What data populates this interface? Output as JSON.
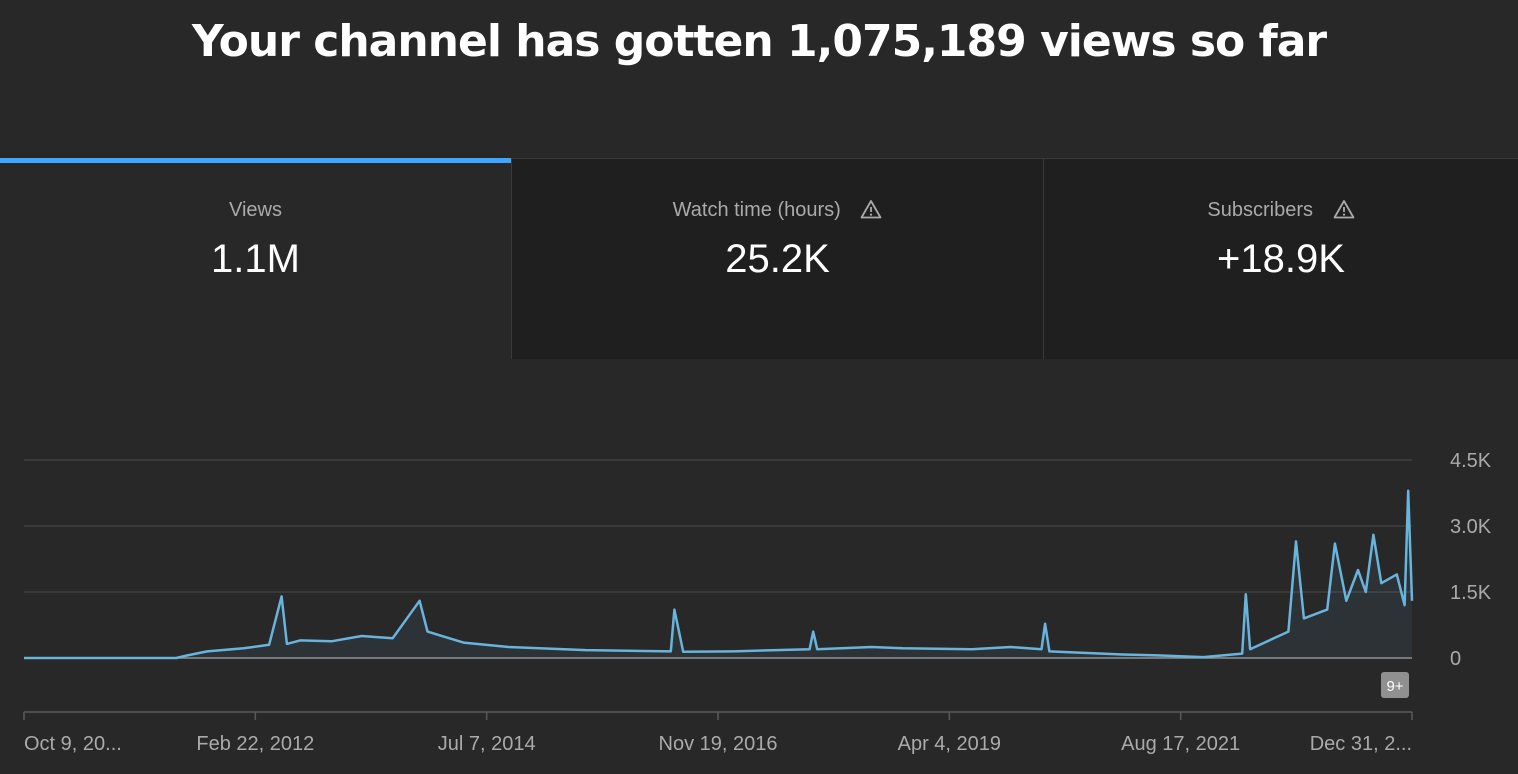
{
  "headline": "Your channel has gotten 1,075,189 views so far",
  "tabs": [
    {
      "label": "Views",
      "value": "1.1M",
      "warning": false,
      "active": true
    },
    {
      "label": "Watch time (hours)",
      "value": "25.2K",
      "warning": true,
      "active": false
    },
    {
      "label": "Subscribers",
      "value": "+18.9K",
      "warning": true,
      "active": false
    }
  ],
  "colors": {
    "accent": "#3ea6ff",
    "line": "#68b4dc",
    "background": "#282828",
    "inactive_tab": "#1f1f1f"
  },
  "chart_data": {
    "type": "line",
    "title": "",
    "xlabel": "",
    "ylabel": "",
    "ylim": [
      0,
      4500
    ],
    "y_ticks": [
      "4.5K",
      "3.0K",
      "1.5K",
      "0"
    ],
    "y_tick_values": [
      4500,
      3000,
      1500,
      0
    ],
    "y_axis_position": "right",
    "grid": true,
    "x_ticks": [
      "Oct 9, 20...",
      "Feb 22, 2012",
      "Jul 7, 2014",
      "Nov 19, 2016",
      "Apr 4, 2019",
      "Aug 17, 2021",
      "Dec 31, 2..."
    ],
    "annotation_badge": "9+",
    "series": [
      {
        "points": [
          [
            "Oct 9, 2009",
            0
          ],
          [
            "Jun 1, 2011",
            0
          ],
          [
            "Jul 15, 2011",
            60
          ],
          [
            "Oct 1, 2011",
            150
          ],
          [
            "Feb 22, 2012",
            220
          ],
          [
            "Jun 1, 2012",
            300
          ],
          [
            "Jul 20, 2012",
            1400
          ],
          [
            "Aug 10, 2012",
            320
          ],
          [
            "Oct 1, 2012",
            400
          ],
          [
            "Feb 1, 2013",
            380
          ],
          [
            "Jun 1, 2013",
            500
          ],
          [
            "Oct 1, 2013",
            450
          ],
          [
            "Jan 15, 2014",
            1300
          ],
          [
            "Feb 15, 2014",
            600
          ],
          [
            "Jul 7, 2014",
            350
          ],
          [
            "Jan 1, 2015",
            250
          ],
          [
            "Nov 1, 2015",
            180
          ],
          [
            "Oct 1, 2016",
            150
          ],
          [
            "Oct 15, 2016",
            1100
          ],
          [
            "Nov 19, 2016",
            140
          ],
          [
            "Jun 1, 2017",
            150
          ],
          [
            "Apr 1, 2018",
            200
          ],
          [
            "Apr 15, 2018",
            600
          ],
          [
            "May 1, 2018",
            200
          ],
          [
            "Dec 1, 2018",
            250
          ],
          [
            "Apr 4, 2019",
            220
          ],
          [
            "Jan 1, 2020",
            200
          ],
          [
            "Jun 1, 2020",
            250
          ],
          [
            "Oct 1, 2020",
            200
          ],
          [
            "Oct 15, 2020",
            780
          ],
          [
            "Nov 1, 2020",
            150
          ],
          [
            "Aug 17, 2021",
            80
          ],
          [
            "Jan 1, 2022",
            60
          ],
          [
            "Jul 1, 2022",
            20
          ],
          [
            "Dec 1, 2022",
            100
          ],
          [
            "Dec 15, 2022",
            1450
          ],
          [
            "Jan 1, 2023",
            200
          ],
          [
            "Jun 1, 2023",
            600
          ],
          [
            "Jul 1, 2023",
            2650
          ],
          [
            "Aug 1, 2023",
            900
          ],
          [
            "Nov 1, 2023",
            1100
          ],
          [
            "Dec 1, 2023",
            2600
          ],
          [
            "Jan 15, 2024",
            1300
          ],
          [
            "Mar 1, 2024",
            2000
          ],
          [
            "Apr 1, 2024",
            1500
          ],
          [
            "May 1, 2024",
            2800
          ],
          [
            "Jun 1, 2024",
            1700
          ],
          [
            "Aug 1, 2024",
            1900
          ],
          [
            "Sep 1, 2024",
            1200
          ],
          [
            "Sep 15, 2024",
            3800
          ],
          [
            "Sep 30, 2024",
            1300
          ]
        ]
      }
    ]
  }
}
